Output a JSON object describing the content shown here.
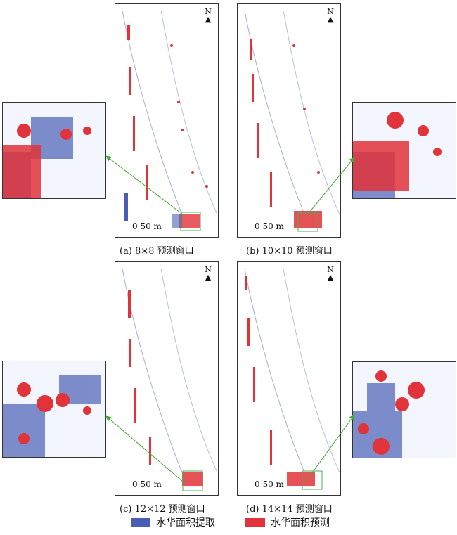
{
  "panels": [
    {
      "caption": "(a) 8×8 预测窗口",
      "north": "N",
      "scale": "0  50 m"
    },
    {
      "caption": "(b) 10×10 预测窗口",
      "north": "N",
      "scale": "0  50 m"
    },
    {
      "caption": "(c) 12×12  预测窗口",
      "north": "N",
      "scale": "0  50 m"
    },
    {
      "caption": "(d) 14×14  预测窗口",
      "north": "N",
      "scale": "0  50 m"
    }
  ],
  "legend": {
    "extract": {
      "label": "水华面积提取",
      "color": "#4a5fb3"
    },
    "predict": {
      "label": "水华面积预测",
      "color": "#e0333a"
    }
  },
  "colors": {
    "frame": "#333333",
    "arrow": "#44a833",
    "inset": "#4caf50"
  }
}
